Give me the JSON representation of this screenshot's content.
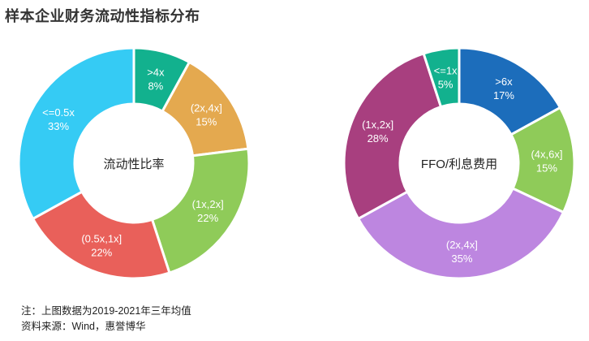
{
  "title": "样本企业财务流动性指标分布",
  "notes": {
    "line1": "注：上图数据为2019-2021年三年均值",
    "line2": "资料来源：Wind，惠誉博华"
  },
  "chart_data": [
    {
      "type": "pie",
      "variant": "donut",
      "center_label": "流动性比率",
      "start": "12 o'clock, clockwise",
      "categories": [
        ">4x",
        "(2x,4x]",
        "(1x,2x]",
        "(0.5x,1x]",
        "<=0.5x"
      ],
      "values": [
        8,
        15,
        22,
        22,
        33
      ],
      "value_labels": [
        "8%",
        "15%",
        "22%",
        "22%",
        "33%"
      ],
      "colors": [
        "#12b18e",
        "#e4a94f",
        "#8fcb59",
        "#e9605a",
        "#35cbf4"
      ]
    },
    {
      "type": "pie",
      "variant": "donut",
      "center_label": "FFO/利息费用",
      "start": "12 o'clock, clockwise",
      "categories": [
        ">6x",
        "(4x,6x]",
        "(2x,4x]",
        "(1x,2x]",
        "<=1x"
      ],
      "values": [
        17,
        15,
        35,
        28,
        5
      ],
      "value_labels": [
        "17%",
        "15%",
        "35%",
        "28%",
        "5%"
      ],
      "colors": [
        "#1c6dbb",
        "#8fcb59",
        "#bd86e0",
        "#a83f7f",
        "#12b18e"
      ]
    }
  ]
}
